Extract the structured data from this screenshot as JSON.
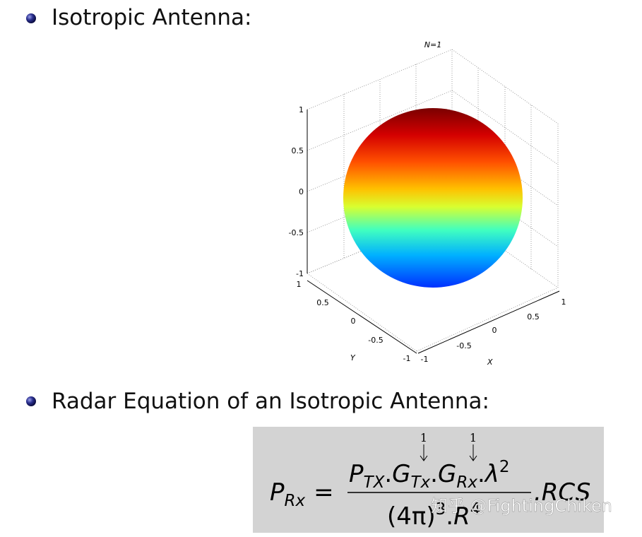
{
  "bullets": [
    "Isotropic Antenna:",
    "Radar Equation of an Isotropic Antenna:"
  ],
  "plot": {
    "title": "N=1",
    "z_ticks": [
      "1",
      "0.5",
      "0",
      "-0.5",
      "-1"
    ],
    "y_ticks": [
      "1",
      "0.5",
      "0",
      "-0.5",
      "-1"
    ],
    "x_ticks": [
      "-1",
      "-0.5",
      "0",
      "0.5",
      "1"
    ],
    "x_label": "X",
    "y_label": "Y"
  },
  "equation": {
    "lhs": "P",
    "lhs_sub": "Rx",
    "equals": "=",
    "num_p": "P",
    "num_p_sub": "TX",
    "dot1": ".",
    "g1": "G",
    "g1_sub": "Tx",
    "dot2": ".",
    "g2": "G",
    "g2_sub": "Rx",
    "dot3": ".",
    "lambda": "λ",
    "lambda_exp": "2",
    "den_open": "(4π)",
    "den_exp": "3",
    "den_dot": ".",
    "den_r": "R",
    "den_r_exp": "4",
    "tail": ".RCS",
    "note1": "1",
    "note2": "1"
  },
  "watermark": "知乎 @FightingChiken"
}
